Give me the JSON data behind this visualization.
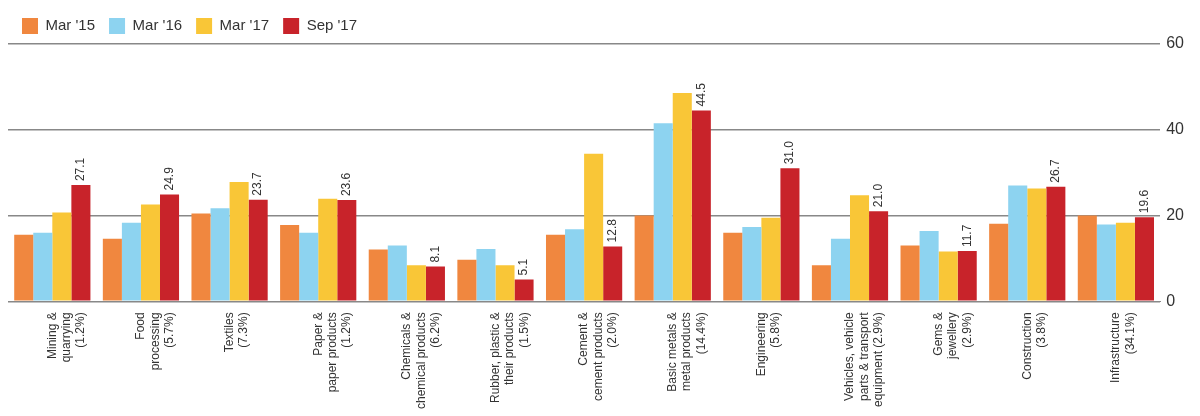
{
  "chart_data": {
    "type": "bar",
    "categories": [
      "Mining &\nquarrying\n(1.2%)",
      "Food\nprocessing\n(5.7%)",
      "Textiles\n(7.3%)",
      "Paper &\npaper products\n(1.2%)",
      "Chemicals &\nchemical products\n(6.2%)",
      "Rubber, plastic &\ntheir products\n(1.5%)",
      "Cement &\ncement products\n(2.0%)",
      "Basic metals &\nmetal products\n(14.4%)",
      "Engineering\n(5.8%)",
      "Vehicles, vehicle\nparts & transport\nequipment (2.9%)",
      "Gems &\njewellery\n(2.9%)",
      "Construction\n(3.8%)",
      "Infrastructure\n(34.1%)"
    ],
    "series": [
      {
        "name": "Mar '15",
        "color": "#f0873f",
        "values": [
          15.5,
          14.6,
          20.5,
          17.8,
          12.1,
          9.7,
          15.5,
          20,
          16,
          8.4,
          13,
          18.1,
          20
        ]
      },
      {
        "name": "Mar '16",
        "color": "#8dd3f0",
        "values": [
          16,
          18.3,
          21.7,
          16,
          13,
          12.2,
          16.8,
          41.5,
          17.3,
          14.6,
          16.4,
          27,
          17.9
        ]
      },
      {
        "name": "Mar '17",
        "color": "#f9c637",
        "values": [
          20.7,
          22.6,
          27.8,
          23.9,
          8.4,
          8.4,
          34.4,
          48.6,
          19.5,
          24.7,
          11.6,
          26.3,
          18.3
        ]
      },
      {
        "name": "Sep '17",
        "color": "#c8232a",
        "values": [
          27.1,
          24.9,
          23.7,
          23.6,
          8.1,
          5.1,
          12.8,
          44.5,
          31.0,
          21.0,
          11.7,
          26.7,
          19.6
        ],
        "value_labels": [
          "27.1",
          "24.9",
          "23.7",
          "23.6",
          "8.1",
          "5.1",
          "12.8",
          "44.5",
          "31.0",
          "21.0",
          "11.7",
          "26.7",
          "19.6"
        ]
      }
    ],
    "ylim": [
      0,
      60
    ],
    "yticks": [
      0,
      20,
      40,
      60
    ],
    "grid": "y",
    "legend": "top left"
  }
}
